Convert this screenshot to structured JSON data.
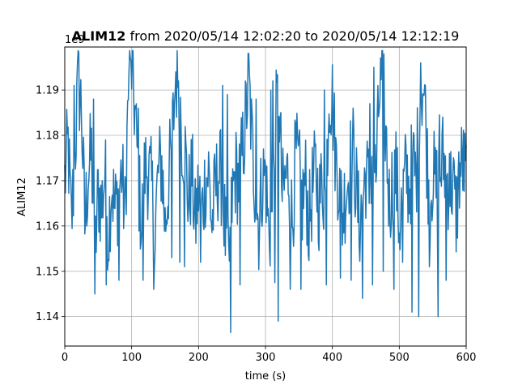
{
  "chart_data": {
    "type": "line",
    "title_bold": "ALIM12",
    "title_rest": " from 2020/05/14 12:02:20 to 2020/05/14 12:12:19",
    "xlabel": "time (s)",
    "ylabel": "ALIM12",
    "offset_text": "1e9",
    "xlim": [
      0,
      600
    ],
    "ylim": [
      1.1335,
      1.1995
    ],
    "y_scale_note": "values multiplied by 1e9",
    "xticks": [
      0,
      100,
      200,
      300,
      400,
      500,
      600
    ],
    "yticks": [
      1.14,
      1.15,
      1.16,
      1.17,
      1.18,
      1.19
    ],
    "grid": true,
    "line_color": "#1f77b4",
    "series": [
      {
        "sample_interval_s": 1,
        "extremes_note": "approx min 1.1365 near t=248, approx max 1.1965 near t=99",
        "x": [
          0,
          5,
          10,
          15,
          20,
          25,
          30,
          35,
          40,
          45,
          50,
          55,
          60,
          65,
          70,
          75,
          80,
          85,
          90,
          95,
          100,
          105,
          110,
          115,
          120,
          125,
          130,
          135,
          140,
          145,
          150,
          155,
          160,
          165,
          170,
          175,
          180,
          185,
          190,
          195,
          200,
          205,
          210,
          215,
          220,
          225,
          230,
          235,
          240,
          245,
          250,
          255,
          260,
          265,
          270,
          275,
          280,
          285,
          290,
          295,
          300,
          305,
          310,
          315,
          320,
          325,
          330,
          335,
          340,
          345,
          350,
          355,
          360,
          365,
          370,
          375,
          380,
          385,
          390,
          395,
          400,
          405,
          410,
          415,
          420,
          425,
          430,
          435,
          440,
          445,
          450,
          455,
          460,
          465,
          470,
          475,
          480,
          485,
          490,
          495,
          500,
          505,
          510,
          515,
          520,
          525,
          530,
          535,
          540,
          545,
          550,
          555,
          560,
          565,
          570,
          575,
          580,
          585,
          590,
          595,
          600
        ],
        "y": [
          1.17,
          1.178,
          1.16,
          1.175,
          1.192,
          1.186,
          1.16,
          1.172,
          1.176,
          1.152,
          1.168,
          1.164,
          1.172,
          1.158,
          1.17,
          1.163,
          1.167,
          1.172,
          1.162,
          1.19,
          1.195,
          1.185,
          1.17,
          1.16,
          1.173,
          1.172,
          1.168,
          1.16,
          1.172,
          1.174,
          1.16,
          1.17,
          1.178,
          1.19,
          1.195,
          1.18,
          1.176,
          1.165,
          1.172,
          1.16,
          1.168,
          1.163,
          1.17,
          1.172,
          1.16,
          1.168,
          1.172,
          1.17,
          1.158,
          1.15,
          1.165,
          1.172,
          1.17,
          1.175,
          1.183,
          1.192,
          1.178,
          1.168,
          1.16,
          1.17,
          1.172,
          1.158,
          1.162,
          1.182,
          1.19,
          1.166,
          1.17,
          1.172,
          1.16,
          1.176,
          1.172,
          1.165,
          1.17,
          1.16,
          1.168,
          1.172,
          1.165,
          1.17,
          1.166,
          1.19,
          1.188,
          1.175,
          1.17,
          1.162,
          1.168,
          1.172,
          1.178,
          1.17,
          1.16,
          1.166,
          1.172,
          1.168,
          1.176,
          1.17,
          1.188,
          1.193,
          1.18,
          1.165,
          1.17,
          1.172,
          1.16,
          1.166,
          1.172,
          1.168,
          1.175,
          1.17,
          1.186,
          1.192,
          1.18,
          1.165,
          1.172,
          1.168,
          1.17,
          1.175,
          1.172,
          1.168,
          1.17,
          1.162,
          1.172,
          1.174,
          1.17
        ],
        "dips": [
          [
            45,
            1.145
          ],
          [
            62,
            1.147
          ],
          [
            81,
            1.148
          ],
          [
            117,
            1.148
          ],
          [
            133,
            1.146
          ],
          [
            160,
            1.153
          ],
          [
            172,
            1.152
          ],
          [
            179,
            1.151
          ],
          [
            203,
            1.152
          ],
          [
            248,
            1.1365
          ],
          [
            262,
            1.147
          ],
          [
            314,
            1.1475
          ],
          [
            319,
            1.139
          ],
          [
            337,
            1.146
          ],
          [
            353,
            1.146
          ],
          [
            391,
            1.147
          ],
          [
            412,
            1.1485
          ],
          [
            428,
            1.148
          ],
          [
            445,
            1.144
          ],
          [
            460,
            1.147
          ],
          [
            476,
            1.15
          ],
          [
            492,
            1.146
          ],
          [
            505,
            1.152
          ],
          [
            519,
            1.141
          ],
          [
            529,
            1.14
          ],
          [
            545,
            1.151
          ],
          [
            558,
            1.14
          ],
          [
            570,
            1.148
          ]
        ],
        "spikes": [
          [
            14,
            1.191
          ],
          [
            19,
            1.196
          ],
          [
            43,
            1.188
          ],
          [
            96,
            1.194
          ],
          [
            99,
            1.1965
          ],
          [
            110,
            1.186
          ],
          [
            166,
            1.194
          ],
          [
            170,
            1.192
          ],
          [
            236,
            1.191
          ],
          [
            243,
            1.189
          ],
          [
            286,
            1.188
          ],
          [
            308,
            1.19
          ],
          [
            311,
            1.192
          ],
          [
            388,
            1.19
          ],
          [
            456,
            1.187
          ],
          [
            462,
            1.195
          ],
          [
            478,
            1.181
          ],
          [
            532,
            1.196
          ],
          [
            539,
            1.191
          ],
          [
            560,
            1.1845
          ],
          [
            575,
            1.176
          ]
        ],
        "note": "dense noisy time series; amplitude estimated from the plotted trace"
      }
    ]
  }
}
